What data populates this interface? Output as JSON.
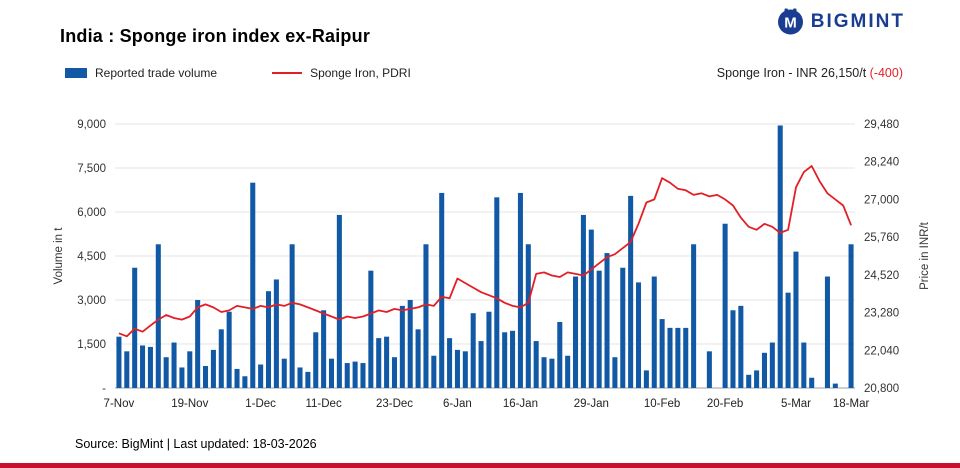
{
  "header": {
    "title": "India : Sponge iron index ex-Raipur",
    "brand": "BIGMINT",
    "logo_letter": "M",
    "price_label": "Sponge Iron - INR 26,150/t ",
    "price_change": "(-400)"
  },
  "legend": [
    {
      "label": "Reported trade volume",
      "type": "bar"
    },
    {
      "label": "Sponge Iron, PDRI",
      "type": "line"
    }
  ],
  "footer": {
    "source": "Source: BigMint | Last updated: 18-03-2026"
  },
  "colors": {
    "bar": "#1159a5",
    "line": "#e21f26",
    "brand": "#1b3d91",
    "accent": "#c8102e",
    "grid": "#e4e4e4",
    "axis": "#9aa0a6"
  },
  "chart_data": {
    "type": "bar+line",
    "title": "India : Sponge iron index ex-Raipur",
    "x_tick_labels": [
      "7-Nov",
      "19-Nov",
      "1-Dec",
      "11-Dec",
      "23-Dec",
      "6-Jan",
      "16-Jan",
      "29-Jan",
      "10-Feb",
      "20-Feb",
      "5-Mar",
      "18-Mar"
    ],
    "x_tick_indices": [
      0,
      9,
      18,
      26,
      35,
      43,
      51,
      60,
      69,
      77,
      86,
      93
    ],
    "y_left": {
      "label": "Volume in t",
      "ticks": [
        "9,000",
        "7,500",
        "6,000",
        "4,500",
        "3,000",
        "1,500",
        "-"
      ],
      "min": 0,
      "max": 9000
    },
    "y_right": {
      "label": "Price in INR/t",
      "ticks": [
        "29,480",
        "28,240",
        "27,000",
        "25,760",
        "24,520",
        "23,280",
        "22,040",
        "20,800"
      ],
      "min": 20800,
      "max": 29480
    },
    "series": [
      {
        "name": "Reported trade volume",
        "type": "bar",
        "values": [
          1750,
          1250,
          4100,
          1450,
          1400,
          4900,
          1050,
          1550,
          700,
          1250,
          3000,
          750,
          1300,
          2000,
          2600,
          650,
          400,
          7000,
          800,
          3300,
          3700,
          1000,
          4900,
          700,
          550,
          1900,
          2650,
          1000,
          5900,
          850,
          900,
          850,
          4000,
          1700,
          1750,
          1050,
          2800,
          3000,
          2000,
          4900,
          1100,
          6650,
          1700,
          1300,
          1250,
          2550,
          1600,
          2600,
          6500,
          1900,
          1950,
          6650,
          4900,
          1600,
          1050,
          1000,
          2250,
          1100,
          3800,
          5900,
          5400,
          4000,
          4600,
          1050,
          4100,
          6550,
          3600,
          600,
          3800,
          2350,
          2050,
          2050,
          2050,
          4900,
          0,
          1250,
          0,
          5600,
          2650,
          2800,
          450,
          600,
          1200,
          1550,
          8950,
          3250,
          4650,
          1550,
          350,
          0,
          3800,
          150,
          0,
          4900
        ]
      },
      {
        "name": "Sponge Iron, PDRI",
        "type": "line",
        "values": [
          22600,
          22500,
          22750,
          22650,
          22850,
          23050,
          23200,
          23100,
          23050,
          23150,
          23450,
          23550,
          23450,
          23300,
          23350,
          23500,
          23450,
          23400,
          23500,
          23450,
          23550,
          23500,
          23600,
          23550,
          23450,
          23350,
          23250,
          23150,
          23050,
          23150,
          23100,
          23150,
          23250,
          23350,
          23300,
          23400,
          23350,
          23400,
          23450,
          23550,
          23500,
          23800,
          23750,
          24400,
          24250,
          24100,
          23950,
          23850,
          23750,
          23600,
          23500,
          23450,
          23600,
          24550,
          24600,
          24500,
          24450,
          24600,
          24550,
          24500,
          24700,
          24900,
          25100,
          25200,
          25400,
          25600,
          26200,
          26900,
          27000,
          27700,
          27550,
          27350,
          27300,
          27150,
          27200,
          27100,
          27150,
          27000,
          26800,
          26400,
          26100,
          26000,
          26200,
          26100,
          25900,
          26000,
          27400,
          27900,
          28100,
          27600,
          27200,
          27000,
          26800,
          26150
        ]
      }
    ],
    "legend_position": "top-left",
    "grid": true
  }
}
